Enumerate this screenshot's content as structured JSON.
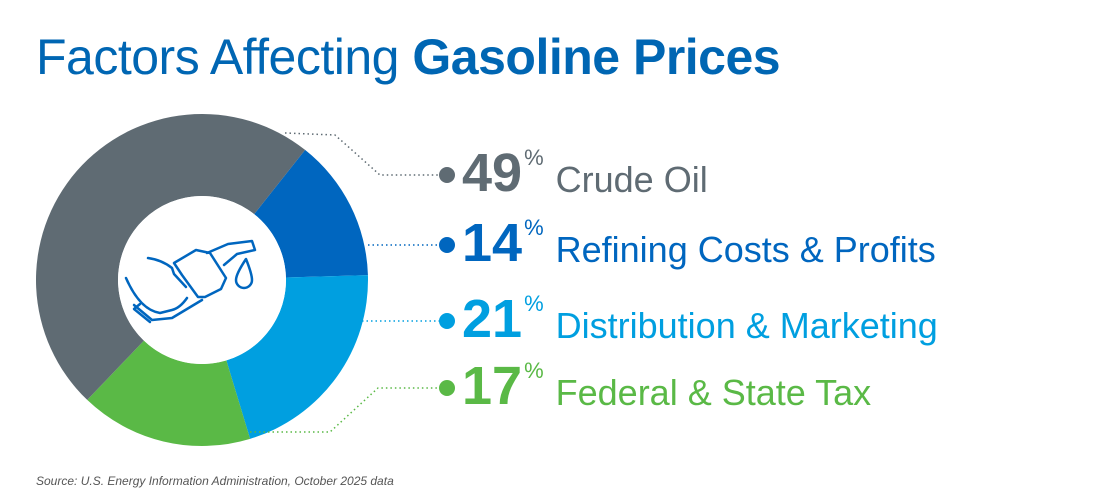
{
  "chart_data": {
    "type": "pie",
    "style": "donut",
    "title_regular": "Factors Affecting ",
    "title_bold": "Gasoline Prices",
    "slices": [
      {
        "name": "Crude Oil",
        "value": 49,
        "color": "#5f6b73"
      },
      {
        "name": "Refining Costs & Profits",
        "value": 14,
        "color": "#0066bf"
      },
      {
        "name": "Distribution & Marketing",
        "value": 21,
        "color": "#009fe0"
      },
      {
        "name": "Federal & State Tax",
        "value": 17,
        "color": "#5ab946"
      }
    ],
    "percent_sign": "%",
    "center_icon": "hand-fuel-nozzle-icon",
    "source": "Source: U.S. Energy Information Administration, October 2025 data"
  }
}
